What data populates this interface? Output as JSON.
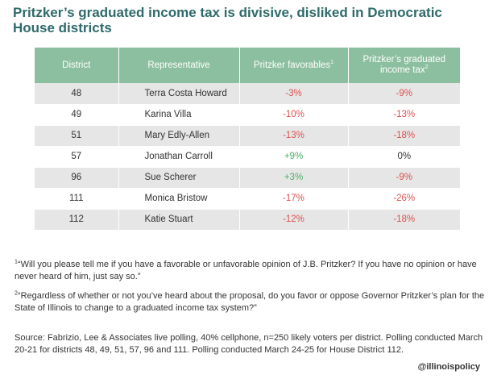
{
  "title": "Pritzker’s graduated income tax is divisive, disliked in Democratic House districts",
  "chart_data": {
    "type": "table",
    "columns": [
      "District",
      "Representative",
      "Pritzker favorables",
      "Pritzker’s graduated income tax"
    ],
    "column_sups": [
      "",
      "",
      "1",
      "2"
    ],
    "rows": [
      {
        "district": "48",
        "representative": "Terra Costa Howard",
        "favorables": "-3%",
        "fav_tone": "neg",
        "tax": "-9%",
        "tax_tone": "neg"
      },
      {
        "district": "49",
        "representative": "Karina Villa",
        "favorables": "-10%",
        "fav_tone": "neg",
        "tax": "-13%",
        "tax_tone": "neg"
      },
      {
        "district": "51",
        "representative": "Mary Edly-Allen",
        "favorables": "-13%",
        "fav_tone": "neg",
        "tax": "-18%",
        "tax_tone": "neg"
      },
      {
        "district": "57",
        "representative": "Jonathan Carroll",
        "favorables": "+9%",
        "fav_tone": "pos",
        "tax": "0%",
        "tax_tone": "zero"
      },
      {
        "district": "96",
        "representative": "Sue Scherer",
        "favorables": "+3%",
        "fav_tone": "pos",
        "tax": "-9%",
        "tax_tone": "neg"
      },
      {
        "district": "111",
        "representative": "Monica Bristow",
        "favorables": "-17%",
        "fav_tone": "neg",
        "tax": "-26%",
        "tax_tone": "neg"
      },
      {
        "district": "112",
        "representative": "Katie Stuart",
        "favorables": "-12%",
        "fav_tone": "neg",
        "tax": "-18%",
        "tax_tone": "neg"
      }
    ],
    "colors": {
      "header": "#8cbf9f",
      "negative": "#d9534f",
      "positive": "#4caf6a",
      "title": "#2f6a6a"
    }
  },
  "footnotes": {
    "n1_marker": "1",
    "n1": "“Will you please tell me if you have a favorable or unfavorable opinion of J.B. Pritzker? If you have no opinion or have never heard of him, just say so.”",
    "n2_marker": "2",
    "n2": "“Regardless of whether or not you’ve heard about the proposal, do you favor or oppose Governor Pritzker’s plan for the State of Illinois to change to a graduated income tax system?”",
    "source": "Source: Fabrizio, Lee & Associates live polling, 40% cellphone, n=250 likely voters per district. Polling conducted March 20-21 for districts 48, 49, 51, 57, 96 and 111. Polling conducted March 24-25 for House District 112."
  },
  "handle": "@illinoispolicy"
}
